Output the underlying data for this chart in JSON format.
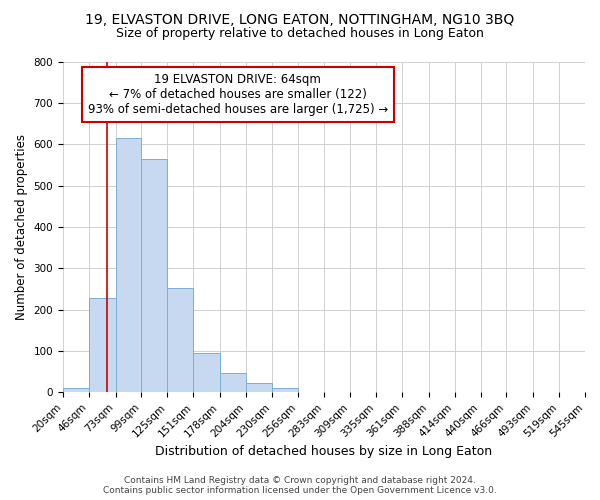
{
  "title": "19, ELVASTON DRIVE, LONG EATON, NOTTINGHAM, NG10 3BQ",
  "subtitle": "Size of property relative to detached houses in Long Eaton",
  "xlabel": "Distribution of detached houses by size in Long Eaton",
  "ylabel": "Number of detached properties",
  "bin_edges": [
    20,
    46,
    73,
    99,
    125,
    151,
    178,
    204,
    230,
    256,
    283,
    309,
    335,
    361,
    388,
    414,
    440,
    466,
    493,
    519,
    545
  ],
  "bar_heights": [
    10,
    228,
    615,
    565,
    253,
    95,
    47,
    22,
    10,
    0,
    0,
    0,
    0,
    0,
    0,
    0,
    0,
    0,
    0,
    0
  ],
  "bar_color": "#c6d9f0",
  "bar_edge_color": "#7bafd4",
  "property_size": 64,
  "red_line_color": "#cc0000",
  "annotation_line1": "19 ELVASTON DRIVE: 64sqm",
  "annotation_line2": "← 7% of detached houses are smaller (122)",
  "annotation_line3": "93% of semi-detached houses are larger (1,725) →",
  "annotation_box_edge_color": "#cc0000",
  "annotation_fontsize": 8.5,
  "ylim": [
    0,
    800
  ],
  "yticks": [
    0,
    100,
    200,
    300,
    400,
    500,
    600,
    700,
    800
  ],
  "title_fontsize": 10,
  "subtitle_fontsize": 9,
  "xlabel_fontsize": 9,
  "ylabel_fontsize": 8.5,
  "tick_label_fontsize": 7.5,
  "footer_line1": "Contains HM Land Registry data © Crown copyright and database right 2024.",
  "footer_line2": "Contains public sector information licensed under the Open Government Licence v3.0.",
  "footer_fontsize": 6.5,
  "background_color": "#ffffff",
  "grid_color": "#d0d0d0"
}
